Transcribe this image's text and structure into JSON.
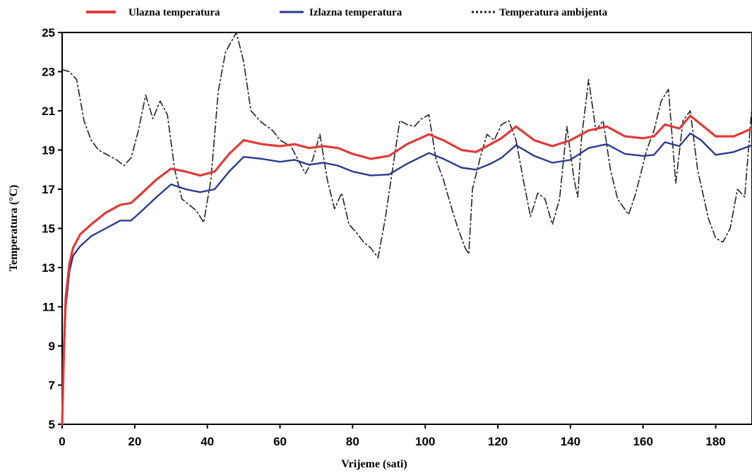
{
  "chart_data": {
    "type": "line",
    "title": "",
    "xlabel": "Vrijeme (sati)",
    "ylabel": "Temperatura (°C)",
    "xlim": [
      0,
      190
    ],
    "ylim": [
      5,
      25
    ],
    "x_ticks": [
      "0",
      "20",
      "40",
      "60",
      "80",
      "100",
      "120",
      "140",
      "160",
      "180"
    ],
    "y_ticks": [
      "5",
      "7",
      "9",
      "11",
      "13",
      "15",
      "17",
      "19",
      "21",
      "23",
      "25"
    ],
    "legend_position": "top",
    "grid": false,
    "series": [
      {
        "name": "Ulazna temperatura",
        "color": "#e03a3a",
        "style": "solid",
        "points": [
          [
            0,
            5
          ],
          [
            0.5,
            9
          ],
          [
            1,
            11.5
          ],
          [
            2,
            13.2
          ],
          [
            3,
            14
          ],
          [
            5,
            14.7
          ],
          [
            8,
            15.2
          ],
          [
            12,
            15.8
          ],
          [
            16,
            16.2
          ],
          [
            19,
            16.3
          ],
          [
            22,
            16.8
          ],
          [
            26,
            17.5
          ],
          [
            30,
            18.05
          ],
          [
            34,
            17.9
          ],
          [
            38,
            17.7
          ],
          [
            42,
            17.9
          ],
          [
            46,
            18.8
          ],
          [
            50,
            19.5
          ],
          [
            55,
            19.3
          ],
          [
            60,
            19.2
          ],
          [
            64,
            19.3
          ],
          [
            68,
            19.1
          ],
          [
            72,
            19.2
          ],
          [
            76,
            19.1
          ],
          [
            80,
            18.8
          ],
          [
            85,
            18.55
          ],
          [
            90,
            18.7
          ],
          [
            95,
            19.3
          ],
          [
            101,
            19.8
          ],
          [
            105,
            19.5
          ],
          [
            110,
            19.0
          ],
          [
            114,
            18.9
          ],
          [
            118,
            19.3
          ],
          [
            121,
            19.6
          ],
          [
            125,
            20.2
          ],
          [
            130,
            19.5
          ],
          [
            135,
            19.2
          ],
          [
            140,
            19.5
          ],
          [
            145,
            20.0
          ],
          [
            150,
            20.2
          ],
          [
            155,
            19.7
          ],
          [
            160,
            19.6
          ],
          [
            163,
            19.7
          ],
          [
            166,
            20.3
          ],
          [
            170,
            20.1
          ],
          [
            173,
            20.75
          ],
          [
            176,
            20.3
          ],
          [
            180,
            19.7
          ],
          [
            185,
            19.7
          ],
          [
            190,
            20.1
          ]
        ]
      },
      {
        "name": "Izlazna temperatura",
        "color": "#2b3a8c",
        "style": "solid",
        "points": [
          [
            0,
            5
          ],
          [
            0.5,
            8.5
          ],
          [
            1,
            11
          ],
          [
            2,
            12.8
          ],
          [
            3,
            13.6
          ],
          [
            5,
            14.1
          ],
          [
            8,
            14.6
          ],
          [
            12,
            15.0
          ],
          [
            16,
            15.4
          ],
          [
            19,
            15.4
          ],
          [
            22,
            15.9
          ],
          [
            26,
            16.6
          ],
          [
            30,
            17.25
          ],
          [
            34,
            17.0
          ],
          [
            38,
            16.85
          ],
          [
            42,
            17.0
          ],
          [
            46,
            17.9
          ],
          [
            50,
            18.65
          ],
          [
            55,
            18.55
          ],
          [
            60,
            18.4
          ],
          [
            64,
            18.5
          ],
          [
            68,
            18.25
          ],
          [
            72,
            18.35
          ],
          [
            76,
            18.2
          ],
          [
            80,
            17.9
          ],
          [
            85,
            17.7
          ],
          [
            90,
            17.75
          ],
          [
            95,
            18.3
          ],
          [
            101,
            18.85
          ],
          [
            105,
            18.55
          ],
          [
            110,
            18.1
          ],
          [
            114,
            18.0
          ],
          [
            118,
            18.3
          ],
          [
            121,
            18.6
          ],
          [
            125,
            19.25
          ],
          [
            130,
            18.7
          ],
          [
            135,
            18.35
          ],
          [
            140,
            18.5
          ],
          [
            145,
            19.1
          ],
          [
            150,
            19.3
          ],
          [
            155,
            18.8
          ],
          [
            160,
            18.7
          ],
          [
            163,
            18.75
          ],
          [
            166,
            19.4
          ],
          [
            170,
            19.2
          ],
          [
            173,
            19.85
          ],
          [
            176,
            19.5
          ],
          [
            180,
            18.75
          ],
          [
            185,
            18.9
          ],
          [
            190,
            19.25
          ]
        ]
      },
      {
        "name": "Temperatura ambijenta",
        "color": "#222222",
        "style": "dashed",
        "points": [
          [
            0,
            23.1
          ],
          [
            2,
            23.0
          ],
          [
            4,
            22.6
          ],
          [
            6,
            20.5
          ],
          [
            8,
            19.5
          ],
          [
            10,
            19.0
          ],
          [
            12,
            18.8
          ],
          [
            15,
            18.5
          ],
          [
            17,
            18.2
          ],
          [
            19,
            18.6
          ],
          [
            21,
            20.0
          ],
          [
            23,
            21.8
          ],
          [
            25,
            20.6
          ],
          [
            27,
            21.5
          ],
          [
            29,
            20.8
          ],
          [
            31,
            18.0
          ],
          [
            33,
            16.5
          ],
          [
            35,
            16.2
          ],
          [
            37,
            15.9
          ],
          [
            39,
            15.3
          ],
          [
            41,
            17.5
          ],
          [
            43,
            22.0
          ],
          [
            45,
            24.0
          ],
          [
            48,
            25.0
          ],
          [
            50,
            23.5
          ],
          [
            52,
            21.0
          ],
          [
            55,
            20.4
          ],
          [
            58,
            20.0
          ],
          [
            60,
            19.5
          ],
          [
            63,
            19.2
          ],
          [
            65,
            18.5
          ],
          [
            67,
            17.8
          ],
          [
            69,
            18.5
          ],
          [
            71,
            19.8
          ],
          [
            73,
            17.5
          ],
          [
            75,
            16.0
          ],
          [
            77,
            16.8
          ],
          [
            79,
            15.2
          ],
          [
            81,
            14.8
          ],
          [
            83,
            14.3
          ],
          [
            85,
            14.0
          ],
          [
            87,
            13.5
          ],
          [
            89,
            15.5
          ],
          [
            91,
            18.0
          ],
          [
            93,
            20.5
          ],
          [
            95,
            20.3
          ],
          [
            97,
            20.2
          ],
          [
            99,
            20.6
          ],
          [
            101,
            20.8
          ],
          [
            103,
            18.5
          ],
          [
            105,
            17.5
          ],
          [
            107,
            16.2
          ],
          [
            109,
            15.0
          ],
          [
            111,
            14.0
          ],
          [
            112,
            13.7
          ],
          [
            113,
            17.0
          ],
          [
            115,
            18.5
          ],
          [
            117,
            19.8
          ],
          [
            119,
            19.5
          ],
          [
            121,
            20.3
          ],
          [
            123,
            20.5
          ],
          [
            125,
            19.5
          ],
          [
            127,
            17.5
          ],
          [
            129,
            15.6
          ],
          [
            131,
            16.8
          ],
          [
            133,
            16.5
          ],
          [
            135,
            15.2
          ],
          [
            137,
            16.5
          ],
          [
            139,
            20.2
          ],
          [
            141,
            17.5
          ],
          [
            142,
            16.6
          ],
          [
            143,
            19.5
          ],
          [
            145,
            22.6
          ],
          [
            147,
            20.0
          ],
          [
            149,
            20.5
          ],
          [
            151,
            18.0
          ],
          [
            153,
            16.5
          ],
          [
            156,
            15.7
          ],
          [
            158,
            16.8
          ],
          [
            161,
            19.0
          ],
          [
            163,
            20.0
          ],
          [
            165,
            21.5
          ],
          [
            167,
            22.1
          ],
          [
            169,
            17.3
          ],
          [
            171,
            20.5
          ],
          [
            173,
            21.0
          ],
          [
            175,
            18.0
          ],
          [
            178,
            15.5
          ],
          [
            180,
            14.5
          ],
          [
            182,
            14.3
          ],
          [
            184,
            15.0
          ],
          [
            186,
            17.0
          ],
          [
            188,
            16.6
          ],
          [
            190,
            21.3
          ]
        ]
      }
    ]
  }
}
